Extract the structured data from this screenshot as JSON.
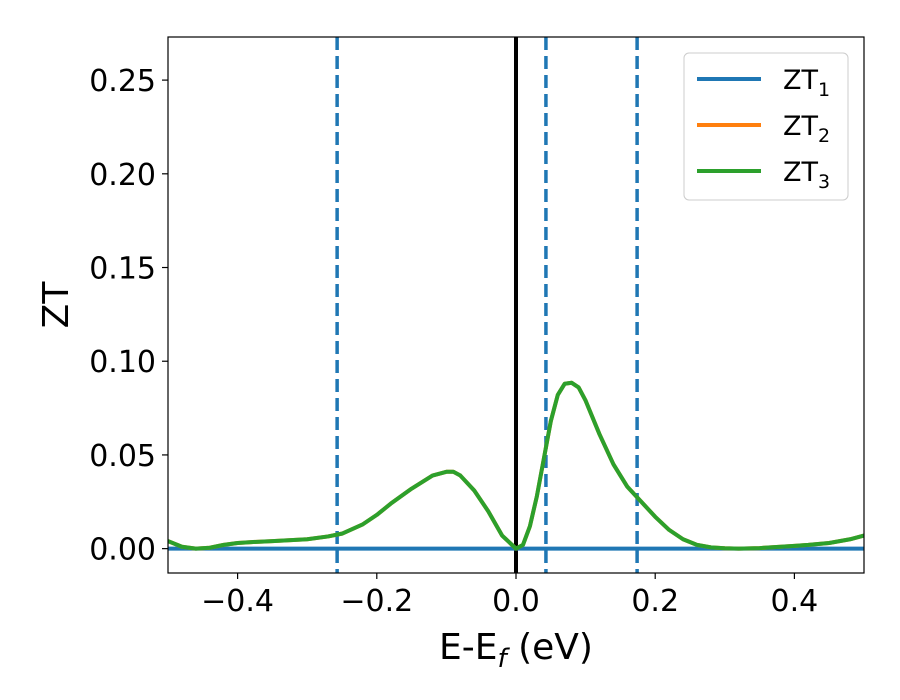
{
  "chart_data": {
    "type": "line",
    "xlabel": "E-E_f (eV)",
    "xlabel_main": "E-E",
    "xlabel_sub": "f",
    "xlabel_unit": " (eV)",
    "ylabel": "ZT",
    "xlim": [
      -0.5,
      0.5
    ],
    "ylim": [
      -0.013,
      0.273
    ],
    "x_ticks": [
      -0.4,
      -0.2,
      0.0,
      0.2,
      0.4
    ],
    "x_tick_labels": [
      "−0.4",
      "−0.2",
      "0.0",
      "0.2",
      "0.4"
    ],
    "y_ticks": [
      0.0,
      0.05,
      0.1,
      0.15,
      0.2,
      0.25
    ],
    "y_tick_labels": [
      "0.00",
      "0.05",
      "0.10",
      "0.15",
      "0.20",
      "0.25"
    ],
    "grid": false,
    "legend_position": "top-right",
    "vertical_lines": [
      {
        "x": 0.0,
        "style": "solid",
        "color": "#000000"
      },
      {
        "x": -0.257,
        "style": "dashed",
        "color": "#1f77b4"
      },
      {
        "x": 0.043,
        "style": "dashed",
        "color": "#1f77b4"
      },
      {
        "x": 0.174,
        "style": "dashed",
        "color": "#1f77b4"
      }
    ],
    "series": [
      {
        "name": "ZT_1",
        "name_main": "ZT",
        "name_sub": "1",
        "color": "#1f77b4",
        "x": [
          -0.5,
          0.5
        ],
        "y": [
          0.0,
          0.0
        ]
      },
      {
        "name": "ZT_2",
        "name_main": "ZT",
        "name_sub": "2",
        "color": "#ff7f0e",
        "x": [
          -0.5,
          -0.48,
          -0.46,
          -0.44,
          -0.42,
          -0.4,
          -0.38,
          -0.35,
          -0.3,
          -0.27,
          -0.25,
          -0.22,
          -0.2,
          -0.18,
          -0.15,
          -0.12,
          -0.1,
          -0.09,
          -0.08,
          -0.06,
          -0.04,
          -0.02,
          0.0,
          0.01,
          0.02,
          0.03,
          0.04,
          0.05,
          0.06,
          0.07,
          0.08,
          0.09,
          0.1,
          0.12,
          0.14,
          0.16,
          0.18,
          0.2,
          0.22,
          0.24,
          0.26,
          0.28,
          0.3,
          0.32,
          0.35,
          0.38,
          0.4,
          0.42,
          0.45,
          0.48,
          0.5
        ],
        "y": [
          0.004,
          0.001,
          0.0,
          0.0005,
          0.002,
          0.003,
          0.0035,
          0.004,
          0.005,
          0.0065,
          0.008,
          0.013,
          0.018,
          0.024,
          0.032,
          0.039,
          0.041,
          0.041,
          0.039,
          0.031,
          0.02,
          0.007,
          0.0,
          0.002,
          0.012,
          0.028,
          0.048,
          0.068,
          0.082,
          0.088,
          0.0885,
          0.086,
          0.079,
          0.061,
          0.045,
          0.033,
          0.025,
          0.017,
          0.01,
          0.005,
          0.002,
          0.0007,
          0.0002,
          0.0,
          0.0003,
          0.001,
          0.0015,
          0.002,
          0.003,
          0.005,
          0.007
        ]
      },
      {
        "name": "ZT_3",
        "name_main": "ZT",
        "name_sub": "3",
        "color": "#2ca02c",
        "x": [
          -0.5,
          -0.48,
          -0.46,
          -0.44,
          -0.42,
          -0.4,
          -0.38,
          -0.35,
          -0.3,
          -0.27,
          -0.25,
          -0.22,
          -0.2,
          -0.18,
          -0.15,
          -0.12,
          -0.1,
          -0.09,
          -0.08,
          -0.06,
          -0.04,
          -0.02,
          0.0,
          0.01,
          0.02,
          0.03,
          0.04,
          0.05,
          0.06,
          0.07,
          0.08,
          0.09,
          0.1,
          0.12,
          0.14,
          0.16,
          0.18,
          0.2,
          0.22,
          0.24,
          0.26,
          0.28,
          0.3,
          0.32,
          0.35,
          0.38,
          0.4,
          0.42,
          0.45,
          0.48,
          0.5
        ],
        "y": [
          0.004,
          0.001,
          0.0,
          0.0005,
          0.002,
          0.003,
          0.0035,
          0.004,
          0.005,
          0.0065,
          0.008,
          0.013,
          0.018,
          0.024,
          0.032,
          0.039,
          0.041,
          0.041,
          0.039,
          0.031,
          0.02,
          0.007,
          0.0,
          0.002,
          0.012,
          0.028,
          0.048,
          0.068,
          0.082,
          0.088,
          0.0885,
          0.086,
          0.079,
          0.061,
          0.045,
          0.033,
          0.025,
          0.017,
          0.01,
          0.005,
          0.002,
          0.0007,
          0.0002,
          0.0,
          0.0003,
          0.001,
          0.0015,
          0.002,
          0.003,
          0.005,
          0.007
        ]
      }
    ]
  }
}
